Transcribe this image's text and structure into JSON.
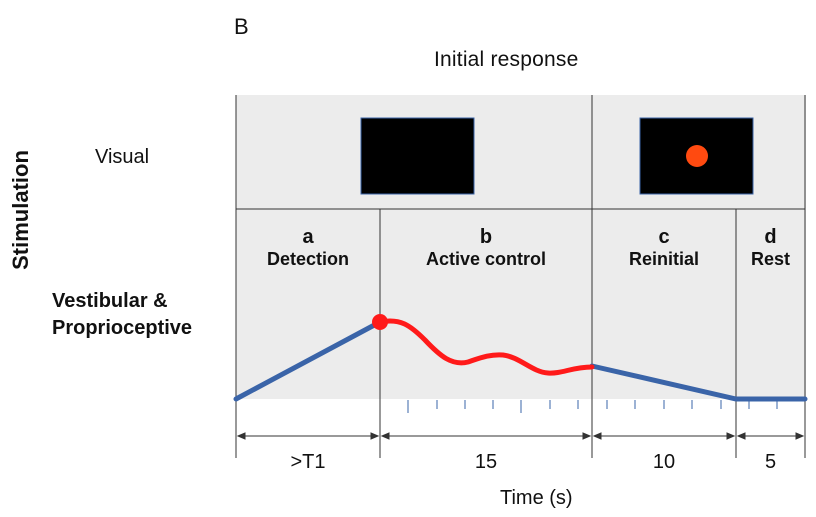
{
  "panel_letter": "B",
  "title": "Initial response",
  "y_axis_label": "Stimulation",
  "row_labels": {
    "visual": "Visual",
    "vestibular_line1": "Vestibular &",
    "vestibular_line2": "Proprioceptive"
  },
  "phases": [
    {
      "letter": "a",
      "name": "Detection",
      "duration": ">T1"
    },
    {
      "letter": "b",
      "name": "Active control",
      "duration": "15"
    },
    {
      "letter": "c",
      "name": "Reinitial",
      "duration": "10"
    },
    {
      "letter": "d",
      "name": "Rest",
      "duration": "5"
    }
  ],
  "x_axis_label": "Time (s)",
  "colors": {
    "panel_bg": "#ececec",
    "stimulus_line": "#3a64a8",
    "response_line": "#ff1a1a",
    "target_dot": "#ff4a10",
    "screen": "#000000"
  }
}
